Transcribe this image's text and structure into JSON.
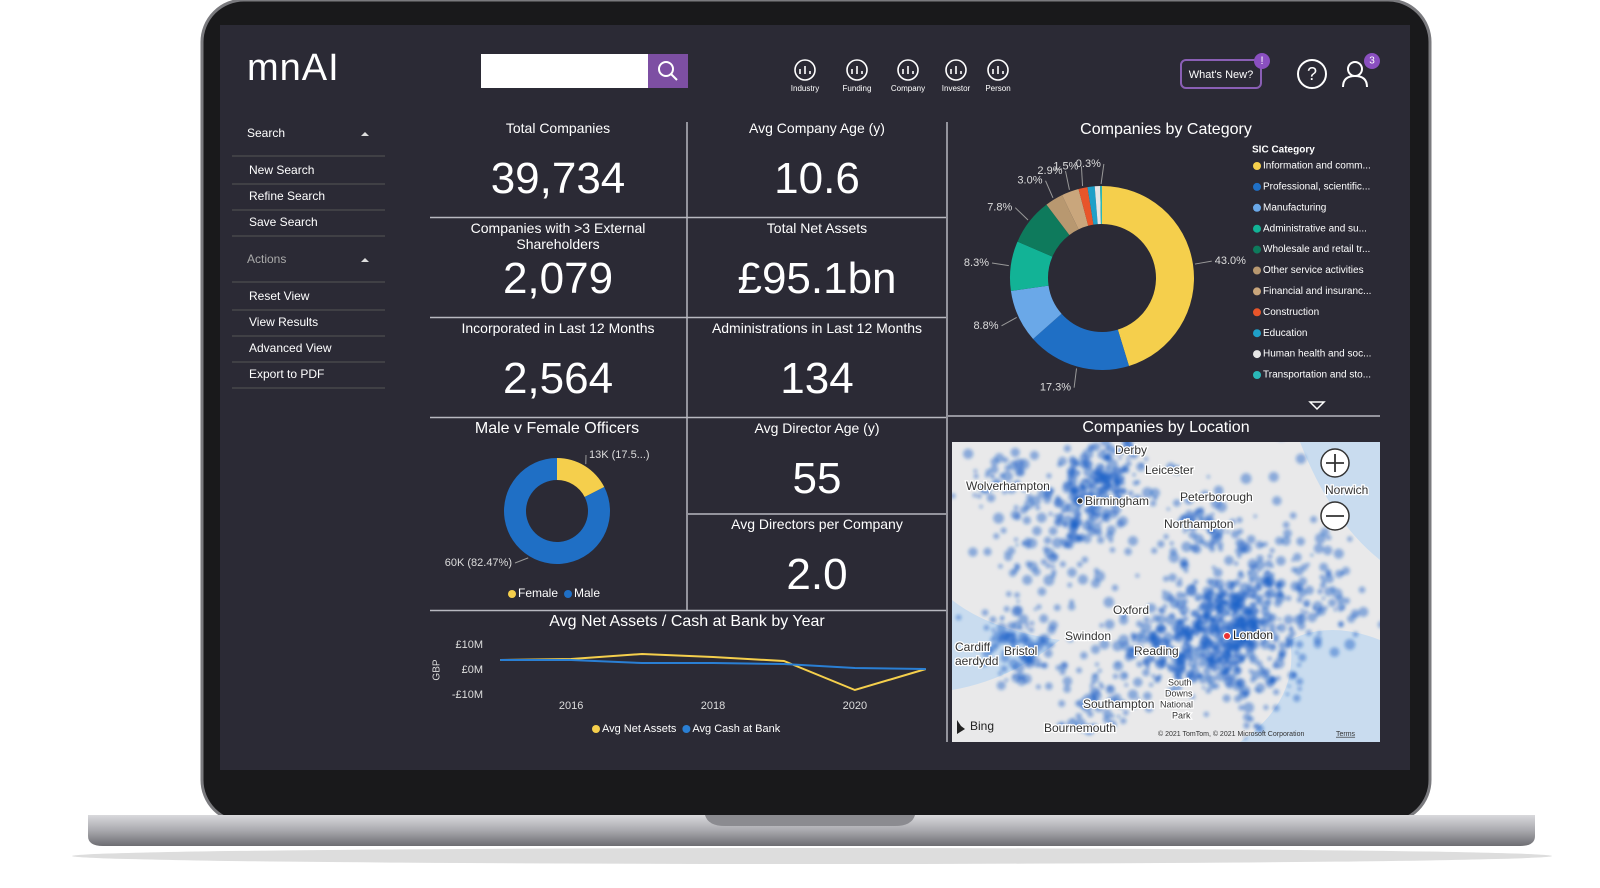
{
  "header": {
    "logo": "mnAI",
    "nav": [
      "Industry",
      "Funding",
      "Company",
      "Investor",
      "Person"
    ],
    "whats_new": "What's New?",
    "whats_new_badge": "!",
    "help": "?",
    "user_badge": "3"
  },
  "sidebar": {
    "sections": [
      {
        "title": "Search",
        "items": [
          "New Search",
          "Refine Search",
          "Save Search"
        ]
      },
      {
        "title": "Actions",
        "items": [
          "Reset View",
          "View Results",
          "Advanced View",
          "Export to PDF"
        ]
      }
    ]
  },
  "kpis": [
    {
      "title": "Total Companies",
      "value": "39,734"
    },
    {
      "title": "Avg Company Age (y)",
      "value": "10.6"
    },
    {
      "title": "Companies with >3 External Shareholders",
      "value": "2,079"
    },
    {
      "title": "Total Net Assets",
      "value": "£95.1bn"
    },
    {
      "title": "Incorporated in Last 12 Months",
      "value": "2,564"
    },
    {
      "title": "Administrations in Last 12 Months",
      "value": "134"
    },
    {
      "title": "Avg Director Age (y)",
      "value": "55"
    },
    {
      "title": "Avg Directors per Company",
      "value": "2.0"
    }
  ],
  "chart_data": [
    {
      "type": "donut",
      "title": "Male v Female Officers",
      "categories": [
        "Female",
        "Male"
      ],
      "values": [
        17.53,
        82.47
      ],
      "value_labels": [
        "13K (17.5...)",
        "60K (82.47%)"
      ],
      "colors": [
        "#f5cf4c",
        "#1f6fc5"
      ]
    },
    {
      "type": "line",
      "title": "Avg Net Assets / Cash at Bank by Year",
      "y_label": "GBP",
      "x": [
        2015,
        2016,
        2017,
        2018,
        2019,
        2020,
        2021
      ],
      "series": [
        {
          "name": "Avg Net Assets",
          "color": "#f5cf4c",
          "values": [
            4000000,
            4400000,
            6400000,
            5200000,
            3600000,
            -8000000,
            400000
          ]
        },
        {
          "name": "Avg Cash at Bank",
          "color": "#2a7fd4",
          "values": [
            4000000,
            4000000,
            2800000,
            2800000,
            2400000,
            800000,
            400000
          ]
        }
      ],
      "xlim": [
        2014.8,
        2021.2
      ],
      "xticks": [
        2016,
        2018,
        2020
      ],
      "ylim": [
        -12000000,
        12000000
      ],
      "yticks": [
        {
          "value": 10000000,
          "label": "£10M"
        },
        {
          "value": 0,
          "label": "£0M"
        },
        {
          "value": -10000000,
          "label": "-£10M"
        }
      ],
      "grid": false
    },
    {
      "type": "donut",
      "title": "Companies by Category",
      "legend_title": "SIC Category",
      "categories": [
        "Information and comm...",
        "Professional, scientific...",
        "Manufacturing",
        "Administrative and su...",
        "Wholesale and retail tr...",
        "Other service activities",
        "Financial and insuranc...",
        "Construction",
        "Education",
        "Human health and soc...",
        "Transportation and sto..."
      ],
      "values": [
        43.0,
        17.3,
        8.8,
        8.3,
        7.8,
        3.0,
        2.9,
        1.5,
        1.2,
        0.9,
        0.3
      ],
      "value_labels": [
        "43.0%",
        "17.3%",
        "8.8%",
        "8.3%",
        "7.8%",
        "3.0%",
        "2.9%",
        "1.5%",
        null,
        null,
        "0.3%"
      ],
      "colors": [
        "#f5cf4c",
        "#1f6fc5",
        "#6aa8e8",
        "#12b396",
        "#0e7a5c",
        "#b89870",
        "#c9a67c",
        "#e8552a",
        "#1fa0c8",
        "#e6e6e6",
        "#2ab8b8"
      ]
    }
  ],
  "map": {
    "title": "Companies by Location",
    "labels": [
      "Derby",
      "Leicester",
      "Wolverhampton",
      "Birmingham",
      "Peterborough",
      "Norwich",
      "Northampton",
      "Oxford",
      "Swindon",
      "London",
      "Cardiff",
      "aerdydd",
      "Bristol",
      "Reading",
      "South",
      "Downs",
      "National",
      "Park",
      "Southampton",
      "Bournemouth"
    ],
    "provider": "Bing",
    "attribution": "© 2021 TomTom, © 2021 Microsoft Corporation",
    "terms": "Terms"
  }
}
